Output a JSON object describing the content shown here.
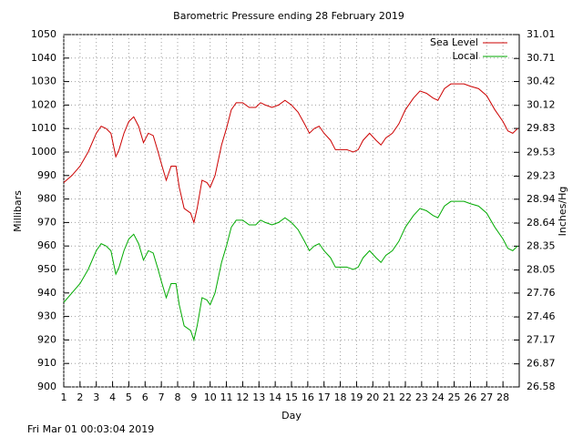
{
  "chart_data": {
    "type": "line",
    "title": "Barometric Pressure ending 28 February 2019",
    "x_label": "Day",
    "y_label": "Millibars",
    "y2_label": "Inches/Hg",
    "timestamp": "Fri Mar 01 00:03:04 2019",
    "x": [
      1,
      1.5,
      2,
      2.5,
      3,
      3.3,
      3.6,
      3.9,
      4.2,
      4.4,
      4.7,
      5,
      5.3,
      5.6,
      5.9,
      6.2,
      6.5,
      6.8,
      7,
      7.3,
      7.6,
      7.9,
      8.1,
      8.4,
      8.8,
      9,
      9.2,
      9.5,
      9.8,
      10,
      10.3,
      10.7,
      11,
      11.3,
      11.6,
      12,
      12.4,
      12.8,
      13.1,
      13.4,
      13.8,
      14.2,
      14.6,
      15,
      15.4,
      15.8,
      16.1,
      16.4,
      16.7,
      17,
      17.4,
      17.7,
      18,
      18.4,
      18.8,
      19.1,
      19.4,
      19.8,
      20.2,
      20.5,
      20.8,
      21.2,
      21.6,
      22,
      22.5,
      22.9,
      23.3,
      23.7,
      24,
      24.4,
      24.8,
      25.2,
      25.6,
      26,
      26.5,
      27,
      27.5,
      28,
      28.3,
      28.6,
      28.9
    ],
    "series": [
      {
        "name": "Sea Level",
        "color": "#cc0000",
        "values": [
          987,
          990,
          994,
          1000,
          1008,
          1011,
          1010,
          1008,
          998,
          1001,
          1008,
          1013,
          1015,
          1011,
          1004,
          1008,
          1007,
          1000,
          995,
          988,
          994,
          994,
          985,
          976,
          974,
          970,
          976,
          988,
          987,
          985,
          990,
          1003,
          1010,
          1018,
          1021,
          1021,
          1019,
          1019,
          1021,
          1020,
          1019,
          1020,
          1022,
          1020,
          1017,
          1012,
          1008,
          1010,
          1011,
          1008,
          1005,
          1001,
          1001,
          1001,
          1000,
          1001,
          1005,
          1008,
          1005,
          1003,
          1006,
          1008,
          1012,
          1018,
          1023,
          1026,
          1025,
          1023,
          1022,
          1027,
          1029,
          1029,
          1029,
          1028,
          1027,
          1024,
          1018,
          1013,
          1009,
          1008,
          1010
        ]
      },
      {
        "name": "Local",
        "color": "#00aa00",
        "values": [
          936,
          940,
          944,
          950,
          958,
          961,
          960,
          958,
          948,
          951,
          958,
          963,
          965,
          961,
          954,
          958,
          957,
          950,
          945,
          938,
          944,
          944,
          935,
          926,
          924,
          920,
          926,
          938,
          937,
          935,
          940,
          953,
          960,
          968,
          971,
          971,
          969,
          969,
          971,
          970,
          969,
          970,
          972,
          970,
          967,
          962,
          958,
          960,
          961,
          958,
          955,
          951,
          951,
          951,
          950,
          951,
          955,
          958,
          955,
          953,
          956,
          958,
          962,
          968,
          973,
          976,
          975,
          973,
          972,
          977,
          979,
          979,
          979,
          978,
          977,
          974,
          968,
          963,
          959,
          958,
          960
        ]
      }
    ],
    "xlim": [
      1,
      29
    ],
    "xticks": [
      1,
      2,
      3,
      4,
      5,
      6,
      7,
      8,
      9,
      10,
      11,
      12,
      13,
      14,
      15,
      16,
      17,
      18,
      19,
      20,
      21,
      22,
      23,
      24,
      25,
      26,
      27,
      28
    ],
    "ylim": [
      900,
      1050
    ],
    "yticks": [
      900,
      910,
      920,
      930,
      940,
      950,
      960,
      970,
      980,
      990,
      1000,
      1010,
      1020,
      1030,
      1040,
      1050
    ],
    "y2lim": [
      26.58,
      31.01
    ],
    "y2ticks": [
      26.58,
      26.87,
      27.17,
      27.46,
      27.76,
      28.05,
      28.35,
      28.64,
      28.94,
      29.23,
      29.53,
      29.83,
      30.12,
      30.42,
      30.71,
      31.01
    ],
    "grid": true,
    "legend": "top-right"
  }
}
